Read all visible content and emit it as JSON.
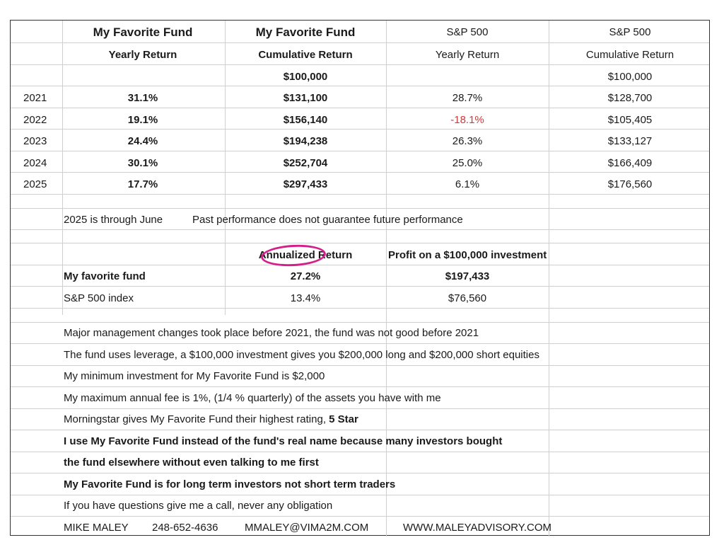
{
  "header": {
    "col1_title": "My Favorite Fund",
    "col1_sub": "Yearly Return",
    "col2_title": "My Favorite Fund",
    "col2_sub": "Cumulative Return",
    "col3_title": "S&P 500",
    "col3_sub": "Yearly Return",
    "col4_title": "S&P 500",
    "col4_sub": "Cumulative Return"
  },
  "start_row": {
    "fund_cumulative": "$100,000",
    "sp_cumulative": "$100,000"
  },
  "rows": [
    {
      "year": "2021",
      "fund_yearly": "31.1%",
      "fund_cumulative": "$131,100",
      "sp_yearly": "28.7%",
      "sp_cumulative": "$128,700"
    },
    {
      "year": "2022",
      "fund_yearly": "19.1%",
      "fund_cumulative": "$156,140",
      "sp_yearly": "-18.1%",
      "sp_cumulative": "$105,405"
    },
    {
      "year": "2023",
      "fund_yearly": "24.4%",
      "fund_cumulative": "$194,238",
      "sp_yearly": "26.3%",
      "sp_cumulative": "$133,127"
    },
    {
      "year": "2024",
      "fund_yearly": "30.1%",
      "fund_cumulative": "$252,704",
      "sp_yearly": "25.0%",
      "sp_cumulative": "$166,409"
    },
    {
      "year": "2025",
      "fund_yearly": "17.7%",
      "fund_cumulative": "$297,433",
      "sp_yearly": "6.1%",
      "sp_cumulative": "$176,560"
    }
  ],
  "negative_color": "#d03a3a",
  "highlight_color": "#d4208a",
  "note_through": "2025 is through June",
  "note_past": "Past performance does not guarantee future performance",
  "summary": {
    "annualized_header": "Annualized Return",
    "profit_header": "Profit on a $100,000 investment",
    "fund_label": "My favorite fund",
    "fund_annualized": "27.2%",
    "fund_profit": "$197,433",
    "sp_label": "S&P 500 index",
    "sp_annualized": "13.4%",
    "sp_profit": "$76,560"
  },
  "notes": {
    "n1": "Major management changes took place before 2021, the fund was not good before 2021",
    "n2": "The fund uses leverage, a  $100,000 investment gives you $200,000 long and $200,000 short equities",
    "n3": "My minimum investment for My Favorite Fund is $2,000",
    "n4": "My maximum annual fee is 1%, (1/4 % quarterly) of the assets you have with me",
    "n5_pre": "Morningstar gives My Favorite  Fund their highest rating, ",
    "n5_bold": "5 Star",
    "n6": "I use My Favorite Fund instead of the fund's real name because many investors bought",
    "n7": "the fund elsewhere without even talking to me first",
    "n8": "My Favorite Fund is for long term investors not short term traders",
    "n9": "If you have questions give me a call, never any obligation"
  },
  "contact": {
    "name": "MIKE MALEY",
    "phone": "248-652-4636",
    "email": "MMALEY@VIMA2M.COM",
    "website": "WWW.MALEYADVISORY.COM"
  }
}
